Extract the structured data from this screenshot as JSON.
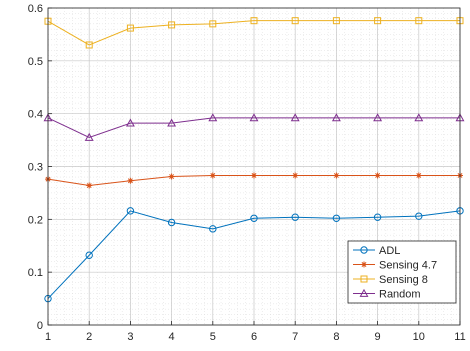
{
  "chart_data": {
    "type": "line",
    "title": "",
    "xlabel": "",
    "ylabel": "",
    "xlim": [
      1,
      11
    ],
    "ylim": [
      0,
      0.6
    ],
    "x": [
      1,
      2,
      3,
      4,
      5,
      6,
      7,
      8,
      9,
      10,
      11
    ],
    "xticks": [
      "1",
      "2",
      "3",
      "4",
      "5",
      "6",
      "7",
      "8",
      "9",
      "10",
      "11"
    ],
    "yticks": [
      0,
      0.1,
      0.2,
      0.3,
      0.4,
      0.5,
      0.6
    ],
    "ytick_labels": [
      "0",
      "0.1",
      "0.2",
      "0.3",
      "0.4",
      "0.5",
      "0.6"
    ],
    "grid": true,
    "legend_position": "bottom-right",
    "series": [
      {
        "name": "ADL",
        "color": "#0072BD",
        "marker": "circle",
        "values": [
          0.05,
          0.132,
          0.216,
          0.194,
          0.182,
          0.202,
          0.204,
          0.202,
          0.204,
          0.206,
          0.216
        ]
      },
      {
        "name": "Sensing 4.7",
        "color": "#D95319",
        "marker": "asterisk",
        "values": [
          0.276,
          0.264,
          0.273,
          0.281,
          0.283,
          0.283,
          0.283,
          0.283,
          0.283,
          0.283,
          0.283
        ]
      },
      {
        "name": "Sensing 8",
        "color": "#EDB120",
        "marker": "square",
        "values": [
          0.575,
          0.53,
          0.562,
          0.568,
          0.57,
          0.576,
          0.576,
          0.576,
          0.576,
          0.576,
          0.576
        ]
      },
      {
        "name": "Random",
        "color": "#7E2F8E",
        "marker": "triangle",
        "values": [
          0.392,
          0.355,
          0.382,
          0.382,
          0.392,
          0.392,
          0.392,
          0.392,
          0.392,
          0.392,
          0.392
        ]
      }
    ]
  }
}
